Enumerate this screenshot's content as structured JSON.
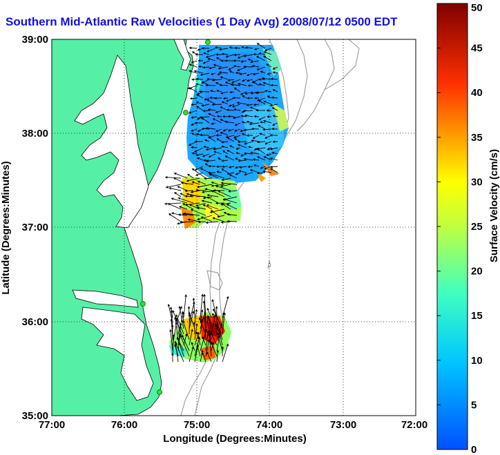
{
  "title": "Southern Mid-Atlantic Raw Velocities (1 Day Avg) 2008/07/12 0500 EDT",
  "map": {
    "xlabel": "Longitude (Degrees:Minutes)",
    "ylabel": "Latitude (Degrees:Minutes)",
    "lon_range": [
      -77,
      -72
    ],
    "lat_range": [
      35,
      39
    ],
    "x_ticks": [
      "77:00",
      "76:00",
      "75:00",
      "74:00",
      "73:00",
      "72:00"
    ],
    "y_ticks": [
      "39:00",
      "38:00",
      "37:00",
      "36:00",
      "35:00"
    ],
    "grid": "dotted",
    "land_color": "#55f0a5",
    "ocean_color": "#ffffff",
    "radar_sites": [
      "site-1",
      "site-2",
      "site-3",
      "site-4"
    ]
  },
  "colorbar": {
    "label": "Surface Velocity (cm/s)",
    "ticks": [
      "50",
      "45",
      "40",
      "35",
      "30",
      "25",
      "20",
      "15",
      "10",
      "5",
      "0"
    ],
    "range": [
      0,
      50
    ],
    "colormap": "jet"
  }
}
